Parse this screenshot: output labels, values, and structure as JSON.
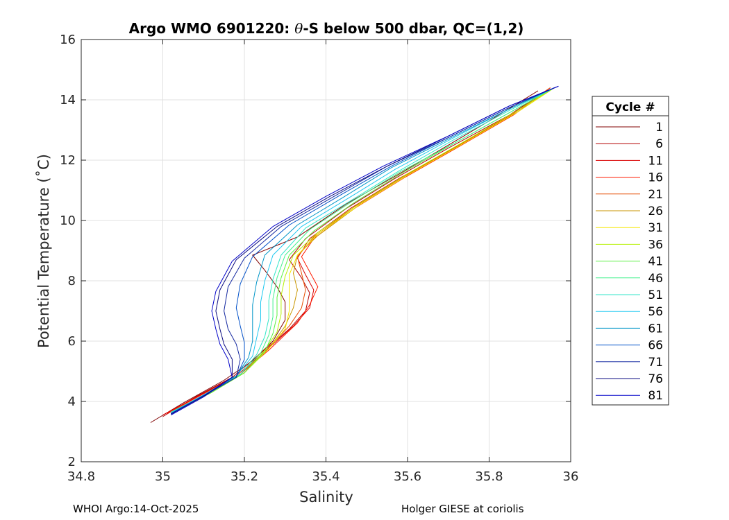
{
  "chart_data": {
    "type": "line",
    "title_prefix": "Argo WMO 6901220: ",
    "title_theta": "θ",
    "title_suffix": "-S below 500 dbar,  QC=(1,2)",
    "xlabel": "Salinity",
    "ylabel": "Potential Temperature (˚C)",
    "xlim": [
      34.8,
      36.0
    ],
    "ylim": [
      2,
      16
    ],
    "xticks": [
      "34.8",
      "35",
      "35.2",
      "35.4",
      "35.6",
      "35.8",
      "36"
    ],
    "yticks": [
      "2",
      "4",
      "6",
      "8",
      "10",
      "12",
      "14",
      "16"
    ],
    "xtick_values": [
      34.8,
      35.0,
      35.2,
      35.4,
      35.6,
      35.8,
      36.0
    ],
    "ytick_values": [
      2,
      4,
      6,
      8,
      10,
      12,
      14,
      16
    ],
    "grid": true,
    "legend": {
      "title": "Cycle #",
      "placement": "outside-right",
      "entries": [
        {
          "label": "1",
          "color": "#800000"
        },
        {
          "label": "6",
          "color": "#b30000"
        },
        {
          "label": "11",
          "color": "#d90000"
        },
        {
          "label": "16",
          "color": "#ff1a00"
        },
        {
          "label": "21",
          "color": "#e64d00"
        },
        {
          "label": "26",
          "color": "#c89600"
        },
        {
          "label": "31",
          "color": "#f5e600"
        },
        {
          "label": "36",
          "color": "#b4f000"
        },
        {
          "label": "41",
          "color": "#5af040"
        },
        {
          "label": "46",
          "color": "#40f08c"
        },
        {
          "label": "51",
          "color": "#30e6c8"
        },
        {
          "label": "56",
          "color": "#1ec8f0"
        },
        {
          "label": "61",
          "color": "#0096c8"
        },
        {
          "label": "66",
          "color": "#0050c8"
        },
        {
          "label": "71",
          "color": "#1428a0"
        },
        {
          "label": "76",
          "color": "#0a0a80"
        },
        {
          "label": "81",
          "color": "#0000c8"
        }
      ]
    },
    "series": [
      {
        "name": "1",
        "color": "#800000",
        "points": [
          [
            34.97,
            3.3
          ],
          [
            35.05,
            3.95
          ],
          [
            35.15,
            4.7
          ],
          [
            35.22,
            5.35
          ],
          [
            35.27,
            6.0
          ],
          [
            35.3,
            6.7
          ],
          [
            35.3,
            7.3
          ],
          [
            35.28,
            7.8
          ],
          [
            35.25,
            8.35
          ],
          [
            35.22,
            8.85
          ],
          [
            35.33,
            9.45
          ],
          [
            35.45,
            10.55
          ],
          [
            35.58,
            11.55
          ],
          [
            35.7,
            12.5
          ],
          [
            35.8,
            13.3
          ],
          [
            35.92,
            14.3
          ]
        ]
      },
      {
        "name": "6",
        "color": "#b30000",
        "points": [
          [
            35.0,
            3.5
          ],
          [
            35.08,
            4.15
          ],
          [
            35.17,
            4.8
          ],
          [
            35.24,
            5.6
          ],
          [
            35.31,
            6.4
          ],
          [
            35.35,
            7.0
          ],
          [
            35.36,
            7.6
          ],
          [
            35.34,
            8.1
          ],
          [
            35.31,
            8.7
          ],
          [
            35.35,
            9.4
          ],
          [
            35.45,
            10.4
          ],
          [
            35.57,
            11.4
          ],
          [
            35.7,
            12.4
          ],
          [
            35.85,
            13.5
          ],
          [
            35.95,
            14.4
          ]
        ]
      },
      {
        "name": "11",
        "color": "#d90000",
        "points": [
          [
            35.0,
            3.55
          ],
          [
            35.09,
            4.2
          ],
          [
            35.18,
            4.85
          ],
          [
            35.25,
            5.65
          ],
          [
            35.32,
            6.5
          ],
          [
            35.36,
            7.1
          ],
          [
            35.37,
            7.7
          ],
          [
            35.35,
            8.2
          ],
          [
            35.33,
            8.75
          ],
          [
            35.36,
            9.4
          ],
          [
            35.46,
            10.4
          ],
          [
            35.58,
            11.4
          ],
          [
            35.72,
            12.45
          ],
          [
            35.86,
            13.55
          ],
          [
            35.95,
            14.4
          ]
        ]
      },
      {
        "name": "16",
        "color": "#ff1a00",
        "points": [
          [
            35.01,
            3.6
          ],
          [
            35.1,
            4.25
          ],
          [
            35.19,
            4.9
          ],
          [
            35.26,
            5.7
          ],
          [
            35.33,
            6.6
          ],
          [
            35.36,
            7.2
          ],
          [
            35.38,
            7.8
          ],
          [
            35.36,
            8.3
          ],
          [
            35.34,
            8.8
          ],
          [
            35.37,
            9.4
          ],
          [
            35.47,
            10.4
          ],
          [
            35.59,
            11.4
          ],
          [
            35.72,
            12.4
          ],
          [
            35.86,
            13.5
          ],
          [
            35.95,
            14.4
          ]
        ]
      },
      {
        "name": "21",
        "color": "#e64d00",
        "points": [
          [
            35.02,
            3.62
          ],
          [
            35.11,
            4.25
          ],
          [
            35.19,
            4.9
          ],
          [
            35.25,
            5.65
          ],
          [
            35.31,
            6.5
          ],
          [
            35.34,
            7.1
          ],
          [
            35.35,
            7.7
          ],
          [
            35.34,
            8.25
          ],
          [
            35.33,
            8.8
          ],
          [
            35.37,
            9.45
          ],
          [
            35.47,
            10.45
          ],
          [
            35.59,
            11.45
          ],
          [
            35.72,
            12.45
          ],
          [
            35.86,
            13.55
          ],
          [
            35.95,
            14.4
          ]
        ]
      },
      {
        "name": "26",
        "color": "#c89600",
        "points": [
          [
            35.02,
            3.65
          ],
          [
            35.11,
            4.28
          ],
          [
            35.2,
            4.95
          ],
          [
            35.26,
            5.75
          ],
          [
            35.3,
            6.5
          ],
          [
            35.32,
            7.1
          ],
          [
            35.33,
            7.7
          ],
          [
            35.32,
            8.25
          ],
          [
            35.33,
            8.85
          ],
          [
            35.38,
            9.5
          ],
          [
            35.48,
            10.5
          ],
          [
            35.6,
            11.5
          ],
          [
            35.73,
            12.5
          ],
          [
            35.87,
            13.6
          ],
          [
            35.96,
            14.4
          ]
        ]
      },
      {
        "name": "31",
        "color": "#f5e600",
        "points": [
          [
            35.03,
            3.68
          ],
          [
            35.12,
            4.3
          ],
          [
            35.2,
            4.95
          ],
          [
            35.26,
            5.75
          ],
          [
            35.3,
            6.4
          ],
          [
            35.31,
            7.0
          ],
          [
            35.31,
            7.6
          ],
          [
            35.31,
            8.2
          ],
          [
            35.33,
            8.85
          ],
          [
            35.38,
            9.55
          ],
          [
            35.48,
            10.5
          ],
          [
            35.6,
            11.5
          ],
          [
            35.73,
            12.5
          ],
          [
            35.87,
            13.6
          ],
          [
            35.96,
            14.4
          ]
        ]
      },
      {
        "name": "36",
        "color": "#b4f000",
        "points": [
          [
            35.03,
            3.7
          ],
          [
            35.12,
            4.3
          ],
          [
            35.2,
            4.95
          ],
          [
            35.25,
            5.7
          ],
          [
            35.28,
            6.3
          ],
          [
            35.29,
            6.9
          ],
          [
            35.29,
            7.5
          ],
          [
            35.3,
            8.15
          ],
          [
            35.32,
            8.85
          ],
          [
            35.38,
            9.6
          ],
          [
            35.48,
            10.55
          ],
          [
            35.6,
            11.55
          ],
          [
            35.73,
            12.55
          ],
          [
            35.87,
            13.65
          ],
          [
            35.96,
            14.4
          ]
        ]
      },
      {
        "name": "41",
        "color": "#5af040",
        "points": [
          [
            35.03,
            3.7
          ],
          [
            35.12,
            4.3
          ],
          [
            35.2,
            4.95
          ],
          [
            35.25,
            5.65
          ],
          [
            35.27,
            6.25
          ],
          [
            35.28,
            6.85
          ],
          [
            35.28,
            7.45
          ],
          [
            35.29,
            8.1
          ],
          [
            35.31,
            8.85
          ],
          [
            35.37,
            9.65
          ],
          [
            35.47,
            10.6
          ],
          [
            35.59,
            11.6
          ],
          [
            35.72,
            12.6
          ],
          [
            35.86,
            13.65
          ],
          [
            35.96,
            14.4
          ]
        ]
      },
      {
        "name": "46",
        "color": "#40f08c",
        "points": [
          [
            35.03,
            3.68
          ],
          [
            35.11,
            4.28
          ],
          [
            35.19,
            4.9
          ],
          [
            35.24,
            5.6
          ],
          [
            35.26,
            6.2
          ],
          [
            35.27,
            6.8
          ],
          [
            35.27,
            7.4
          ],
          [
            35.28,
            8.1
          ],
          [
            35.3,
            8.85
          ],
          [
            35.36,
            9.7
          ],
          [
            35.46,
            10.6
          ],
          [
            35.58,
            11.6
          ],
          [
            35.72,
            12.6
          ],
          [
            35.86,
            13.65
          ],
          [
            35.96,
            14.4
          ]
        ]
      },
      {
        "name": "51",
        "color": "#30e6c8",
        "points": [
          [
            35.02,
            3.65
          ],
          [
            35.11,
            4.25
          ],
          [
            35.19,
            4.9
          ],
          [
            35.23,
            5.55
          ],
          [
            35.25,
            6.15
          ],
          [
            35.26,
            6.75
          ],
          [
            35.26,
            7.35
          ],
          [
            35.27,
            8.05
          ],
          [
            35.29,
            8.85
          ],
          [
            35.35,
            9.75
          ],
          [
            35.46,
            10.65
          ],
          [
            35.58,
            11.65
          ],
          [
            35.71,
            12.65
          ],
          [
            35.85,
            13.65
          ],
          [
            35.96,
            14.4
          ]
        ]
      },
      {
        "name": "56",
        "color": "#1ec8f0",
        "points": [
          [
            35.02,
            3.62
          ],
          [
            35.1,
            4.22
          ],
          [
            35.18,
            4.85
          ],
          [
            35.22,
            5.5
          ],
          [
            35.23,
            6.1
          ],
          [
            35.24,
            6.7
          ],
          [
            35.24,
            7.3
          ],
          [
            35.25,
            8.0
          ],
          [
            35.27,
            8.85
          ],
          [
            35.34,
            9.8
          ],
          [
            35.45,
            10.7
          ],
          [
            35.57,
            11.7
          ],
          [
            35.7,
            12.65
          ],
          [
            35.85,
            13.7
          ],
          [
            35.96,
            14.4
          ]
        ]
      },
      {
        "name": "61",
        "color": "#0096c8",
        "points": [
          [
            35.02,
            3.6
          ],
          [
            35.1,
            4.2
          ],
          [
            35.18,
            4.85
          ],
          [
            35.21,
            5.45
          ],
          [
            35.22,
            6.0
          ],
          [
            35.22,
            6.6
          ],
          [
            35.22,
            7.2
          ],
          [
            35.23,
            7.95
          ],
          [
            35.25,
            8.85
          ],
          [
            35.33,
            9.85
          ],
          [
            35.44,
            10.75
          ],
          [
            35.56,
            11.75
          ],
          [
            35.7,
            12.7
          ],
          [
            35.85,
            13.7
          ],
          [
            35.96,
            14.4
          ]
        ]
      },
      {
        "name": "66",
        "color": "#0050c8",
        "points": [
          [
            35.02,
            3.6
          ],
          [
            35.1,
            4.2
          ],
          [
            35.18,
            4.8
          ],
          [
            35.2,
            5.4
          ],
          [
            35.2,
            5.95
          ],
          [
            35.19,
            6.5
          ],
          [
            35.18,
            7.1
          ],
          [
            35.19,
            7.9
          ],
          [
            35.22,
            8.8
          ],
          [
            35.31,
            9.85
          ],
          [
            35.43,
            10.8
          ],
          [
            35.56,
            11.8
          ],
          [
            35.7,
            12.75
          ],
          [
            35.85,
            13.75
          ],
          [
            35.96,
            14.4
          ]
        ]
      },
      {
        "name": "71",
        "color": "#1428a0",
        "points": [
          [
            35.02,
            3.58
          ],
          [
            35.1,
            4.18
          ],
          [
            35.18,
            4.8
          ],
          [
            35.19,
            5.4
          ],
          [
            35.18,
            5.9
          ],
          [
            35.16,
            6.4
          ],
          [
            35.15,
            7.0
          ],
          [
            35.16,
            7.8
          ],
          [
            35.2,
            8.75
          ],
          [
            35.29,
            9.8
          ],
          [
            35.42,
            10.8
          ],
          [
            35.55,
            11.8
          ],
          [
            35.7,
            12.75
          ],
          [
            35.85,
            13.75
          ],
          [
            35.96,
            14.4
          ]
        ]
      },
      {
        "name": "76",
        "color": "#0a0a80",
        "points": [
          [
            35.02,
            3.58
          ],
          [
            35.1,
            4.18
          ],
          [
            35.17,
            4.8
          ],
          [
            35.17,
            5.4
          ],
          [
            35.15,
            5.9
          ],
          [
            35.14,
            6.4
          ],
          [
            35.13,
            7.0
          ],
          [
            35.14,
            7.7
          ],
          [
            35.18,
            8.7
          ],
          [
            35.28,
            9.8
          ],
          [
            35.41,
            10.8
          ],
          [
            35.55,
            11.8
          ],
          [
            35.7,
            12.8
          ],
          [
            35.85,
            13.8
          ],
          [
            35.97,
            14.45
          ]
        ]
      },
      {
        "name": "81",
        "color": "#0000c8",
        "points": [
          [
            35.02,
            3.55
          ],
          [
            35.1,
            4.15
          ],
          [
            35.17,
            4.8
          ],
          [
            35.16,
            5.4
          ],
          [
            35.14,
            5.9
          ],
          [
            35.13,
            6.4
          ],
          [
            35.12,
            7.0
          ],
          [
            35.13,
            7.65
          ],
          [
            35.17,
            8.65
          ],
          [
            35.27,
            9.8
          ],
          [
            35.4,
            10.8
          ],
          [
            35.54,
            11.8
          ],
          [
            35.7,
            12.8
          ],
          [
            35.85,
            13.8
          ],
          [
            35.97,
            14.45
          ]
        ]
      }
    ]
  },
  "footer": {
    "left": "WHOI Argo:14-Oct-2025",
    "right": "Holger GIESE at coriolis"
  }
}
